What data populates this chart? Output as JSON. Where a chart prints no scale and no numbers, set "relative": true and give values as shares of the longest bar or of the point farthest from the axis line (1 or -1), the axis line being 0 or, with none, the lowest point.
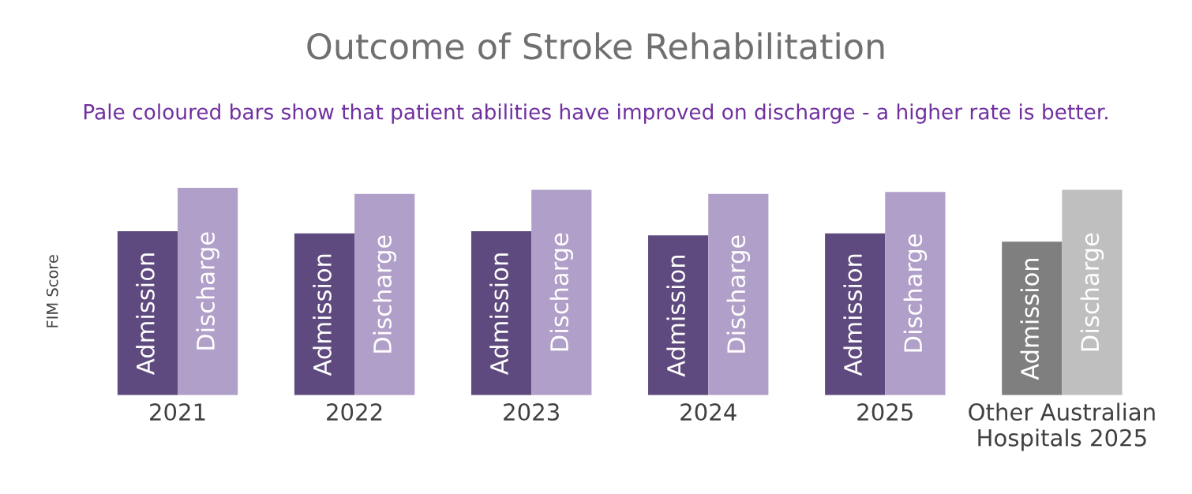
{
  "chart_data": {
    "type": "bar",
    "title": "Outcome of Stroke Rehabilitation",
    "subtitle": "Pale coloured bars show that patient abilities have improved on discharge - a higher rate is better.",
    "ylabel": "FIM Score",
    "relative": true,
    "categories": [
      "2021",
      "2022",
      "2023",
      "2024",
      "2025",
      "Other Australian\nHospitals 2025"
    ],
    "series": [
      {
        "name": "Admission",
        "colors": [
          "#5e4a7e",
          "#5e4a7e",
          "#5e4a7e",
          "#5e4a7e",
          "#5e4a7e",
          "#7f7f7f"
        ],
        "values": [
          0.79,
          0.78,
          0.79,
          0.77,
          0.78,
          0.74
        ]
      },
      {
        "name": "Discharge",
        "colors": [
          "#b09fc8",
          "#b09fc8",
          "#b09fc8",
          "#b09fc8",
          "#b09fc8",
          "#bfbfbf"
        ],
        "values": [
          1.0,
          0.97,
          0.99,
          0.97,
          0.98,
          0.99
        ]
      }
    ],
    "legend": false,
    "grid": false
  }
}
